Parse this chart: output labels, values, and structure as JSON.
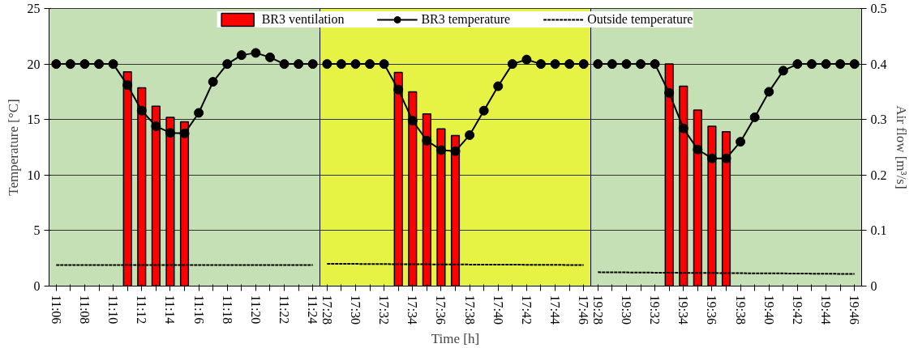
{
  "chart_data": {
    "type": "line",
    "xlabel": "Time [h]",
    "ylabel": "Temperature [°C]",
    "y2label": "Air flow [m³/s]",
    "categories": [
      "11:06",
      null,
      "11:08",
      null,
      "11:10",
      null,
      "11:12",
      null,
      "11:14",
      null,
      "11:16",
      null,
      "11:18",
      null,
      "11:20",
      null,
      "11:22",
      null,
      "11:24",
      "17:28",
      null,
      "17:30",
      null,
      "17:32",
      null,
      "17:34",
      null,
      "17:36",
      null,
      "17:38",
      null,
      "17:40",
      null,
      "17:42",
      null,
      "17:44",
      null,
      "17:46",
      "19:28",
      null,
      "19:30",
      null,
      "19:32",
      null,
      "19:34",
      null,
      "19:36",
      null,
      "19:38",
      null,
      "19:40",
      null,
      "19:42",
      null,
      "19:44",
      null,
      "19:46"
    ],
    "series": [
      {
        "name": "BR3 ventilation",
        "type": "bar",
        "axis": "y2",
        "color": "#ff0000",
        "values": [
          null,
          null,
          null,
          null,
          null,
          0.386,
          0.357,
          0.324,
          0.304,
          0.296,
          null,
          null,
          null,
          null,
          null,
          null,
          null,
          null,
          null,
          null,
          null,
          null,
          null,
          null,
          0.385,
          0.35,
          0.31,
          0.283,
          0.271,
          null,
          null,
          null,
          null,
          null,
          null,
          null,
          null,
          null,
          null,
          null,
          null,
          null,
          null,
          0.4,
          0.36,
          0.317,
          0.288,
          0.278,
          null,
          null,
          null,
          null,
          null,
          null,
          null,
          null,
          null
        ]
      },
      {
        "name": "BR3 temperature",
        "color": "#000000",
        "marker": "circle",
        "line_style": "solid",
        "values": [
          20,
          20,
          20,
          20,
          20,
          18.1,
          15.8,
          14.4,
          13.8,
          13.75,
          15.6,
          18.4,
          20,
          20.8,
          21.0,
          20.6,
          20,
          20,
          20,
          null,
          null,
          null,
          null,
          null,
          null,
          null,
          null,
          null,
          null,
          null,
          null,
          null,
          null,
          null,
          null,
          null,
          null,
          null,
          null,
          null,
          null,
          null,
          null,
          null,
          null,
          null,
          null,
          null,
          null,
          null,
          null,
          null,
          null,
          null,
          null,
          null,
          null
        ]
      },
      {
        "color": "#000000",
        "marker": "circle",
        "line_style": "solid",
        "values": [
          null,
          null,
          null,
          null,
          null,
          null,
          null,
          null,
          null,
          null,
          null,
          null,
          null,
          null,
          null,
          null,
          null,
          null,
          null,
          20,
          20,
          20,
          20,
          20,
          17.7,
          14.9,
          13.1,
          12.25,
          12.15,
          13.6,
          15.8,
          18.0,
          20,
          20.4,
          20,
          20,
          20,
          20,
          null,
          null,
          null,
          null,
          null,
          null,
          null,
          null,
          null,
          null,
          null,
          null,
          null,
          null,
          null,
          null,
          null,
          null,
          null
        ]
      },
      {
        "color": "#000000",
        "marker": "circle",
        "line_style": "solid",
        "values": [
          null,
          null,
          null,
          null,
          null,
          null,
          null,
          null,
          null,
          null,
          null,
          null,
          null,
          null,
          null,
          null,
          null,
          null,
          null,
          null,
          null,
          null,
          null,
          null,
          null,
          null,
          null,
          null,
          null,
          null,
          null,
          null,
          null,
          null,
          null,
          null,
          null,
          null,
          20,
          20,
          20,
          20,
          20,
          17.4,
          14.2,
          12.3,
          11.5,
          11.5,
          13.0,
          15.2,
          17.5,
          19.4,
          20,
          20,
          20,
          20,
          20
        ]
      },
      {
        "name": "Outside temperature",
        "color": "#000000",
        "marker": "none",
        "line_style": "dashed",
        "values": [
          1.9,
          1.9,
          1.9,
          1.9,
          1.9,
          1.9,
          1.9,
          1.9,
          1.9,
          1.9,
          1.9,
          1.9,
          1.9,
          1.9,
          1.9,
          1.9,
          1.9,
          1.9,
          1.9,
          null,
          null,
          null,
          null,
          null,
          null,
          null,
          null,
          null,
          null,
          null,
          null,
          null,
          null,
          null,
          null,
          null,
          null,
          null,
          null,
          null,
          null,
          null,
          null,
          null,
          null,
          null,
          null,
          null,
          null,
          null,
          null,
          null,
          null,
          null,
          null,
          null,
          null
        ]
      },
      {
        "color": "#000000",
        "marker": "none",
        "line_style": "dashed",
        "values": [
          null,
          null,
          null,
          null,
          null,
          null,
          null,
          null,
          null,
          null,
          null,
          null,
          null,
          null,
          null,
          null,
          null,
          null,
          null,
          2.0,
          2.0,
          2.0,
          1.98,
          1.98,
          1.97,
          1.96,
          1.96,
          1.95,
          1.95,
          1.94,
          1.94,
          1.93,
          1.93,
          1.92,
          1.92,
          1.91,
          1.9,
          1.9,
          null,
          null,
          null,
          null,
          null,
          null,
          null,
          null,
          null,
          null,
          null,
          null,
          null,
          null,
          null,
          null,
          null,
          null,
          null
        ]
      },
      {
        "color": "#000000",
        "marker": "none",
        "line_style": "dashed",
        "values": [
          null,
          null,
          null,
          null,
          null,
          null,
          null,
          null,
          null,
          null,
          null,
          null,
          null,
          null,
          null,
          null,
          null,
          null,
          null,
          null,
          null,
          null,
          null,
          null,
          null,
          null,
          null,
          null,
          null,
          null,
          null,
          null,
          null,
          null,
          null,
          null,
          null,
          null,
          1.25,
          1.24,
          1.23,
          1.22,
          1.21,
          1.2,
          1.19,
          1.19,
          1.18,
          1.17,
          1.16,
          1.15,
          1.15,
          1.14,
          1.13,
          1.12,
          1.11,
          1.1,
          1.1
        ]
      }
    ],
    "ylim": [
      0,
      25
    ],
    "yticks": [
      0,
      5,
      10,
      15,
      20,
      25
    ],
    "y2lim": [
      0,
      0.5
    ],
    "y2ticks": [
      0,
      0.1,
      0.2,
      0.3,
      0.4,
      0.5
    ],
    "bands": [
      {
        "axis": "x",
        "from": "11:06",
        "to": "11:24",
        "color": "#c5e0b4"
      },
      {
        "axis": "x",
        "from": "17:28",
        "to": "17:46",
        "color": "#e6f244"
      },
      {
        "axis": "x",
        "from": "19:28",
        "to": "19:46",
        "color": "#c5e0b4"
      }
    ],
    "grid": "y",
    "legend": "top"
  }
}
